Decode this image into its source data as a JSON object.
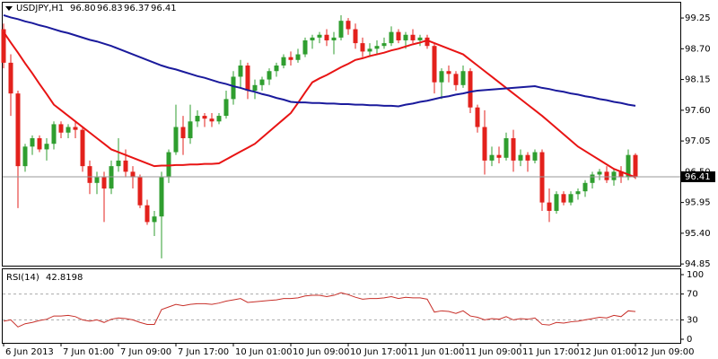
{
  "chart_data": [
    {
      "type": "candlestick",
      "symbol": "USDJPY,H1",
      "last_value_labels": [
        "96.80",
        "96.83",
        "96.37",
        "96.41"
      ],
      "categories": [
        "6 Jun 2013",
        null,
        null,
        null,
        null,
        null,
        null,
        null,
        "7 Jun 01:00",
        null,
        null,
        null,
        null,
        null,
        null,
        null,
        "7 Jun 09:00",
        null,
        null,
        null,
        null,
        null,
        null,
        null,
        "7 Jun 17:00",
        null,
        null,
        null,
        null,
        null,
        null,
        null,
        "10 Jun 01:00",
        null,
        null,
        null,
        null,
        null,
        null,
        null,
        "10 Jun 09:00",
        null,
        null,
        null,
        null,
        null,
        null,
        null,
        "10 Jun 17:00",
        null,
        null,
        null,
        null,
        null,
        null,
        null,
        "11 Jun 01:00",
        null,
        null,
        null,
        null,
        null,
        null,
        null,
        "11 Jun 09:00",
        null,
        null,
        null,
        null,
        null,
        null,
        null,
        "11 Jun 17:00",
        null,
        null,
        null,
        null,
        null,
        null,
        null,
        "12 Jun 01:00",
        null,
        null,
        null,
        null,
        null,
        null,
        null,
        "12 Jun 09:00"
      ],
      "open": [
        99.05,
        98.45,
        97.9,
        96.6,
        96.95,
        97.1,
        96.9,
        97.0,
        97.35,
        97.2,
        97.3,
        97.25,
        96.6,
        96.3,
        96.4,
        96.2,
        96.6,
        96.7,
        96.5,
        96.4,
        95.9,
        95.6,
        95.7,
        96.4,
        96.85,
        97.3,
        97.1,
        97.4,
        97.5,
        97.45,
        97.4,
        97.5,
        97.8,
        98.2,
        98.4,
        97.95,
        98.05,
        98.15,
        98.3,
        98.4,
        98.55,
        98.5,
        98.6,
        98.85,
        98.9,
        98.95,
        98.85,
        98.9,
        99.2,
        99.05,
        98.8,
        98.65,
        98.7,
        98.75,
        98.8,
        99.0,
        98.85,
        98.95,
        98.85,
        98.9,
        98.75,
        98.1,
        98.3,
        98.25,
        98.05,
        98.3,
        97.65,
        97.3,
        96.7,
        96.8,
        96.75,
        97.1,
        96.7,
        96.8,
        96.7,
        96.85,
        95.95,
        95.8,
        96.1,
        95.95,
        96.1,
        96.15,
        96.3,
        96.45,
        96.5,
        96.35,
        96.5,
        96.4,
        96.8
      ],
      "high": [
        99.15,
        98.6,
        97.95,
        97.0,
        97.15,
        97.15,
        97.1,
        97.4,
        97.4,
        97.35,
        97.4,
        97.3,
        96.7,
        96.5,
        96.5,
        96.7,
        97.1,
        96.9,
        96.6,
        96.45,
        96.0,
        95.8,
        96.5,
        96.9,
        97.7,
        97.5,
        97.7,
        97.6,
        97.55,
        97.55,
        97.55,
        97.95,
        98.3,
        98.5,
        98.45,
        98.15,
        98.2,
        98.35,
        98.45,
        98.6,
        98.65,
        98.7,
        98.9,
        98.95,
        99.0,
        99.05,
        99.0,
        99.3,
        99.25,
        99.15,
        98.9,
        98.8,
        98.85,
        98.9,
        99.1,
        99.05,
        99.0,
        99.05,
        98.95,
        98.95,
        98.8,
        98.35,
        98.4,
        98.3,
        98.4,
        98.35,
        97.7,
        97.6,
        96.95,
        96.95,
        97.2,
        97.25,
        96.9,
        96.85,
        96.9,
        96.9,
        96.2,
        96.15,
        96.15,
        96.15,
        96.2,
        96.35,
        96.5,
        96.55,
        96.6,
        96.55,
        96.6,
        96.9,
        96.83
      ],
      "low": [
        98.35,
        97.5,
        95.85,
        96.5,
        96.8,
        96.85,
        96.7,
        96.9,
        97.1,
        97.1,
        97.1,
        96.5,
        96.1,
        96.1,
        95.6,
        96.1,
        96.5,
        96.4,
        96.2,
        95.85,
        95.55,
        95.35,
        94.95,
        96.3,
        96.8,
        96.8,
        97.0,
        97.3,
        97.3,
        97.3,
        97.35,
        97.45,
        97.7,
        98.0,
        97.8,
        97.8,
        97.95,
        98.05,
        98.2,
        98.35,
        98.4,
        98.45,
        98.55,
        98.7,
        98.8,
        98.75,
        98.6,
        98.85,
        98.95,
        98.7,
        98.55,
        98.55,
        98.6,
        98.7,
        98.75,
        98.8,
        98.7,
        98.8,
        98.75,
        98.7,
        97.9,
        97.8,
        98.1,
        97.95,
        98.0,
        97.55,
        97.2,
        96.45,
        96.6,
        96.65,
        96.7,
        96.5,
        96.6,
        96.5,
        96.65,
        95.8,
        95.6,
        95.75,
        95.9,
        95.9,
        96.0,
        96.05,
        96.2,
        96.35,
        96.3,
        96.25,
        96.3,
        96.35,
        96.37
      ],
      "close": [
        98.45,
        97.9,
        96.6,
        96.95,
        97.1,
        96.9,
        97.0,
        97.35,
        97.2,
        97.3,
        97.25,
        96.6,
        96.3,
        96.4,
        96.2,
        96.6,
        96.7,
        96.5,
        96.4,
        95.9,
        95.6,
        95.7,
        96.4,
        96.85,
        97.3,
        97.1,
        97.4,
        97.5,
        97.45,
        97.4,
        97.5,
        97.8,
        98.2,
        98.4,
        97.95,
        98.05,
        98.15,
        98.3,
        98.4,
        98.55,
        98.5,
        98.6,
        98.85,
        98.9,
        98.95,
        98.85,
        98.9,
        99.2,
        99.05,
        98.8,
        98.65,
        98.7,
        98.75,
        98.8,
        99.0,
        98.85,
        98.95,
        98.85,
        98.9,
        98.75,
        98.1,
        98.3,
        98.25,
        98.05,
        98.3,
        97.65,
        97.3,
        96.7,
        96.8,
        96.75,
        97.1,
        96.7,
        96.8,
        96.7,
        96.85,
        95.95,
        95.8,
        96.1,
        95.95,
        96.1,
        96.15,
        96.3,
        96.45,
        96.5,
        96.35,
        96.5,
        96.4,
        96.8,
        96.41
      ],
      "up_color": "#2f9e2f",
      "down_color": "#e3211c",
      "lines": [
        {
          "color": "#e81414",
          "values": [
            99.0,
            98.81,
            98.63,
            98.44,
            98.26,
            98.07,
            97.89,
            97.7,
            97.6,
            97.5,
            97.4,
            97.3,
            97.2,
            97.1,
            97.0,
            96.9,
            96.85,
            96.8,
            96.75,
            96.7,
            96.65,
            96.6,
            96.61,
            96.61,
            96.62,
            96.62,
            96.63,
            96.63,
            96.64,
            96.64,
            96.65,
            96.72,
            96.79,
            96.86,
            96.93,
            97.0,
            97.11,
            97.22,
            97.33,
            97.44,
            97.55,
            97.73,
            97.92,
            98.1,
            98.17,
            98.23,
            98.3,
            98.37,
            98.43,
            98.5,
            98.53,
            98.57,
            98.6,
            98.63,
            98.67,
            98.7,
            98.74,
            98.78,
            98.81,
            98.85,
            98.8,
            98.75,
            98.7,
            98.65,
            98.6,
            98.5,
            98.4,
            98.3,
            98.2,
            98.1,
            98.0,
            97.9,
            97.8,
            97.7,
            97.6,
            97.5,
            97.39,
            97.28,
            97.17,
            97.06,
            96.95,
            96.87,
            96.79,
            96.71,
            96.63,
            96.55,
            96.5,
            96.45,
            96.4
          ]
        },
        {
          "color": "#1a1a9c",
          "values": [
            99.3,
            99.26,
            99.23,
            99.19,
            99.16,
            99.12,
            99.09,
            99.05,
            99.01,
            98.98,
            98.94,
            98.9,
            98.86,
            98.83,
            98.79,
            98.75,
            98.7,
            98.65,
            98.6,
            98.55,
            98.5,
            98.45,
            98.4,
            98.36,
            98.33,
            98.29,
            98.25,
            98.21,
            98.18,
            98.14,
            98.1,
            98.07,
            98.03,
            98.0,
            97.96,
            97.93,
            97.89,
            97.86,
            97.82,
            97.79,
            97.75,
            97.74,
            97.74,
            97.73,
            97.73,
            97.72,
            97.72,
            97.71,
            97.71,
            97.7,
            97.7,
            97.69,
            97.69,
            97.68,
            97.68,
            97.67,
            97.7,
            97.72,
            97.75,
            97.77,
            97.8,
            97.83,
            97.85,
            97.88,
            97.9,
            97.93,
            97.95,
            97.96,
            97.97,
            97.98,
            97.99,
            98.0,
            98.01,
            98.02,
            98.03,
            98.0,
            97.98,
            97.95,
            97.93,
            97.9,
            97.88,
            97.85,
            97.83,
            97.8,
            97.78,
            97.75,
            97.73,
            97.7,
            97.68
          ]
        }
      ],
      "ylim": [
        94.82,
        99.54
      ],
      "yticks": [
        99.25,
        {
          "value": 98.7,
          "label": "98.70"
        },
        98.15,
        {
          "value": 97.6,
          "label": "97.60"
        },
        97.05,
        {
          "value": 96.5,
          "label": "96.50"
        },
        95.95,
        {
          "value": 95.4,
          "label": "95.40"
        },
        94.85
      ]
    },
    {
      "type": "line",
      "title": "RSI(14)",
      "color": "#c8302a",
      "values": [
        28,
        30,
        19,
        24,
        26,
        29,
        31,
        36,
        36,
        37,
        35,
        30,
        28,
        30,
        26,
        31,
        33,
        32,
        30,
        26,
        23,
        23,
        46,
        50,
        54,
        52,
        54,
        55,
        55,
        54,
        56,
        59,
        61,
        63,
        57,
        58,
        59,
        60,
        61,
        63,
        63,
        64,
        67,
        68,
        68,
        66,
        68,
        72,
        69,
        65,
        62,
        63,
        63,
        64,
        66,
        63,
        65,
        64,
        64,
        62,
        42,
        44,
        43,
        40,
        44,
        36,
        34,
        30,
        32,
        31,
        35,
        30,
        32,
        31,
        33,
        23,
        22,
        26,
        25,
        27,
        28,
        30,
        32,
        34,
        33,
        37,
        35,
        44,
        42.8198
      ],
      "ylim": [
        0,
        100
      ],
      "yticks": [
        100,
        70,
        30,
        0
      ]
    }
  ]
}
